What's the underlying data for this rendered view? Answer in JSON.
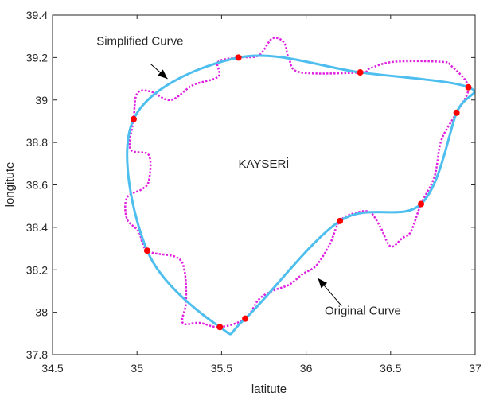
{
  "chart_data": {
    "type": "line",
    "xlabel": "latitute",
    "ylabel": "longitute",
    "xlim": [
      34.5,
      37.0
    ],
    "ylim": [
      37.8,
      39.4
    ],
    "xticks": [
      34.5,
      35,
      35.5,
      36,
      36.5,
      37
    ],
    "yticks": [
      37.8,
      38,
      38.2,
      38.4,
      38.6,
      38.8,
      39,
      39.2,
      39.4
    ],
    "xtick_labels": [
      "34.5",
      "35",
      "35.5",
      "36",
      "36.5",
      "37"
    ],
    "ytick_labels": [
      "37.8",
      "38",
      "38.2",
      "38.4",
      "38.6",
      "38.8",
      "39",
      "39.2",
      "39.4"
    ],
    "grid": false,
    "center_label": {
      "text": "KAYSERİ",
      "x": 35.75,
      "y": 38.68
    },
    "annotations": [
      {
        "text": "Simplified Curve",
        "x": 34.76,
        "y": 39.26,
        "arrow_from": [
          35.08,
          39.17
        ],
        "arrow_to": [
          35.18,
          39.1
        ]
      },
      {
        "text": "Original Curve",
        "x": 36.11,
        "y": 37.99,
        "arrow_from": [
          36.21,
          38.03
        ],
        "arrow_to": [
          36.07,
          38.16
        ]
      }
    ],
    "series": [
      {
        "role": "simplified",
        "color": "#4dbeee",
        "style": "solid",
        "points": [
          [
            35.6,
            39.2
          ],
          [
            36.32,
            39.13
          ],
          [
            36.96,
            39.06
          ],
          [
            36.89,
            38.94
          ],
          [
            36.68,
            38.51
          ],
          [
            36.2,
            38.43
          ],
          [
            35.64,
            37.97
          ],
          [
            35.49,
            37.93
          ],
          [
            35.06,
            38.29
          ],
          [
            34.98,
            38.91
          ],
          [
            35.6,
            39.2
          ]
        ]
      },
      {
        "role": "original",
        "color": "#e020e0",
        "style": "dotted",
        "points": [
          [
            35.6,
            39.2
          ],
          [
            35.72,
            39.21
          ],
          [
            35.8,
            39.29
          ],
          [
            35.87,
            39.27
          ],
          [
            35.9,
            39.19
          ],
          [
            35.97,
            39.13
          ],
          [
            36.32,
            39.13
          ],
          [
            36.38,
            39.15
          ],
          [
            36.52,
            39.18
          ],
          [
            36.8,
            39.18
          ],
          [
            36.86,
            39.16
          ],
          [
            36.96,
            39.06
          ],
          [
            36.89,
            38.94
          ],
          [
            36.8,
            38.81
          ],
          [
            36.76,
            38.64
          ],
          [
            36.68,
            38.51
          ],
          [
            36.62,
            38.38
          ],
          [
            36.57,
            38.35
          ],
          [
            36.5,
            38.31
          ],
          [
            36.44,
            38.4
          ],
          [
            36.38,
            38.47
          ],
          [
            36.3,
            38.47
          ],
          [
            36.2,
            38.43
          ],
          [
            36.14,
            38.32
          ],
          [
            36.06,
            38.22
          ],
          [
            35.98,
            38.18
          ],
          [
            35.9,
            38.13
          ],
          [
            35.8,
            38.1
          ],
          [
            35.72,
            38.06
          ],
          [
            35.64,
            37.97
          ],
          [
            35.49,
            37.93
          ],
          [
            35.37,
            37.95
          ],
          [
            35.27,
            37.95
          ],
          [
            35.29,
            38.05
          ],
          [
            35.28,
            38.2
          ],
          [
            35.23,
            38.26
          ],
          [
            35.06,
            38.29
          ],
          [
            35.01,
            38.38
          ],
          [
            34.94,
            38.44
          ],
          [
            34.94,
            38.54
          ],
          [
            35.03,
            38.58
          ],
          [
            35.07,
            38.62
          ],
          [
            35.07,
            38.74
          ],
          [
            34.96,
            38.77
          ],
          [
            34.98,
            38.91
          ],
          [
            35.0,
            39.03
          ],
          [
            35.08,
            39.04
          ],
          [
            35.2,
            39.0
          ],
          [
            35.33,
            39.07
          ],
          [
            35.48,
            39.11
          ],
          [
            35.48,
            39.18
          ],
          [
            35.6,
            39.2
          ]
        ]
      }
    ],
    "markers": {
      "color": "#ff0000",
      "points": [
        [
          35.6,
          39.2
        ],
        [
          36.32,
          39.13
        ],
        [
          36.96,
          39.06
        ],
        [
          36.89,
          38.94
        ],
        [
          36.68,
          38.51
        ],
        [
          36.2,
          38.43
        ],
        [
          35.64,
          37.97
        ],
        [
          35.49,
          37.93
        ],
        [
          35.06,
          38.29
        ],
        [
          34.98,
          38.91
        ]
      ]
    }
  }
}
